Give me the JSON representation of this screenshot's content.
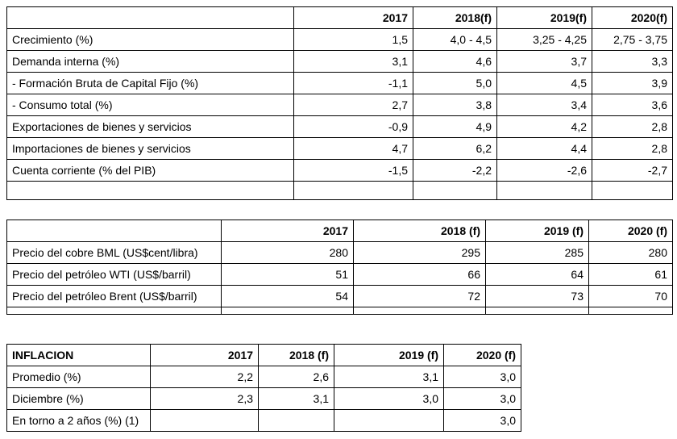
{
  "table1": {
    "headers": [
      "2017",
      "2018(f)",
      "2019(f)",
      "2020(f)"
    ],
    "rows": [
      {
        "label": "Crecimiento (%)",
        "values": [
          "1,5",
          "4,0 - 4,5",
          "3,25 - 4,25",
          "2,75 - 3,75"
        ]
      },
      {
        "label": "Demanda interna (%)",
        "values": [
          "3,1",
          "4,6",
          "3,7",
          "3,3"
        ]
      },
      {
        "label": "- Formación Bruta de Capital Fijo (%)",
        "values": [
          "-1,1",
          "5,0",
          "4,5",
          "3,9"
        ]
      },
      {
        "label": "- Consumo total (%)",
        "values": [
          "2,7",
          "3,8",
          "3,4",
          "3,6"
        ]
      },
      {
        "label": "Exportaciones de bienes y servicios",
        "values": [
          "-0,9",
          "4,9",
          "4,2",
          "2,8"
        ]
      },
      {
        "label": "Importaciones de bienes y servicios",
        "values": [
          "4,7",
          "6,2",
          "4,4",
          "2,8"
        ]
      },
      {
        "label": "Cuenta corriente (% del PIB)",
        "values": [
          "-1,5",
          "-2,2",
          "-2,6",
          "-2,7"
        ]
      }
    ]
  },
  "table2": {
    "headers": [
      "2017",
      "2018 (f)",
      "2019 (f)",
      "2020 (f)"
    ],
    "rows": [
      {
        "label": "Precio del cobre BML (US$cent/libra)",
        "values": [
          "280",
          "295",
          "285",
          "280"
        ]
      },
      {
        "label": "Precio del petróleo WTI (US$/barril)",
        "values": [
          "51",
          "66",
          "64",
          "61"
        ]
      },
      {
        "label": "Precio del petróleo Brent (US$/barril)",
        "values": [
          "54",
          "72",
          "73",
          "70"
        ]
      }
    ]
  },
  "table3": {
    "title": "INFLACION",
    "headers": [
      "2017",
      "2018 (f)",
      "2019 (f)",
      "2020 (f)"
    ],
    "rows": [
      {
        "label": "Promedio (%)",
        "values": [
          "2,2",
          "2,6",
          "3,1",
          "3,0"
        ]
      },
      {
        "label": "Diciembre (%)",
        "values": [
          "2,3",
          "3,1",
          "3,0",
          "3,0"
        ]
      },
      {
        "label": "En torno a 2 años (%) (1)",
        "values": [
          "",
          "",
          "",
          "3,0"
        ]
      }
    ]
  }
}
